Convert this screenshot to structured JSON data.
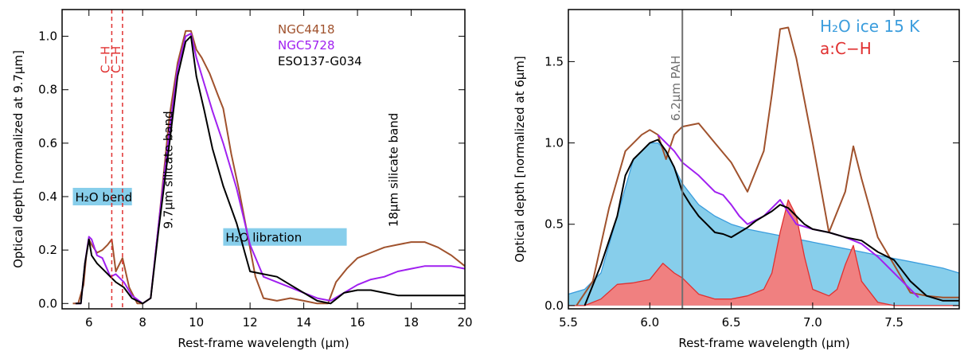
{
  "chart_data": [
    {
      "type": "line",
      "xlabel": "Rest-frame wavelength (μm)",
      "ylabel": "Optical depth [normalized at 9.7μm]",
      "xlim": [
        5,
        20
      ],
      "ylim": [
        -0.02,
        1.1
      ],
      "xticks": [
        "6",
        "8",
        "10",
        "12",
        "14",
        "16",
        "18",
        "20"
      ],
      "yticks": [
        "0.0",
        "0.2",
        "0.4",
        "0.6",
        "0.8",
        "1.0"
      ],
      "legend": {
        "placement": "top-right",
        "entries": [
          {
            "label": "NGC4418",
            "color": "#a0522d"
          },
          {
            "label": "NGC5728",
            "color": "#a020f0"
          },
          {
            "label": "ESO137-G034",
            "color": "#000000"
          }
        ]
      },
      "series": [
        {
          "name": "NGC4418",
          "color": "#a0522d",
          "x": [
            5.4,
            5.6,
            5.8,
            5.9,
            6.0,
            6.1,
            6.3,
            6.5,
            6.7,
            6.85,
            7.0,
            7.25,
            7.5,
            7.8,
            8.0,
            8.3,
            8.6,
            9.0,
            9.3,
            9.6,
            9.8,
            10.0,
            10.2,
            10.5,
            10.8,
            11.0,
            11.3,
            11.6,
            11.9,
            12.2,
            12.5,
            13.0,
            13.5,
            14.0,
            14.5,
            14.9,
            15.2,
            15.6,
            16.0,
            16.5,
            17.0,
            17.5,
            18.0,
            18.5,
            19.0,
            19.5,
            20.0
          ],
          "y": [
            0.0,
            0.0,
            0.07,
            0.18,
            0.24,
            0.22,
            0.19,
            0.2,
            0.22,
            0.24,
            0.12,
            0.17,
            0.06,
            0.0,
            0.0,
            0.02,
            0.3,
            0.7,
            0.9,
            1.02,
            1.02,
            0.95,
            0.92,
            0.86,
            0.78,
            0.73,
            0.56,
            0.42,
            0.26,
            0.1,
            0.02,
            0.01,
            0.02,
            0.01,
            0.0,
            0.0,
            0.08,
            0.13,
            0.17,
            0.19,
            0.21,
            0.22,
            0.23,
            0.23,
            0.21,
            0.18,
            0.14
          ]
        },
        {
          "name": "NGC5728",
          "color": "#a020f0",
          "x": [
            5.5,
            5.7,
            5.85,
            6.0,
            6.1,
            6.3,
            6.5,
            6.8,
            7.0,
            7.3,
            7.6,
            8.0,
            8.3,
            8.6,
            9.0,
            9.3,
            9.6,
            9.8,
            10.0,
            10.3,
            10.6,
            11.0,
            11.5,
            12.0,
            12.5,
            13.0,
            13.5,
            14.0,
            14.5,
            15.0,
            15.5,
            16.0,
            16.5,
            17.0,
            17.5,
            18.0,
            18.5,
            19.0,
            19.5,
            20.0
          ],
          "y": [
            0.0,
            0.0,
            0.15,
            0.25,
            0.24,
            0.18,
            0.17,
            0.1,
            0.11,
            0.08,
            0.03,
            0.0,
            0.02,
            0.3,
            0.65,
            0.88,
            1.0,
            1.01,
            0.92,
            0.82,
            0.72,
            0.6,
            0.43,
            0.22,
            0.1,
            0.08,
            0.06,
            0.04,
            0.02,
            0.01,
            0.04,
            0.07,
            0.09,
            0.1,
            0.12,
            0.13,
            0.14,
            0.14,
            0.14,
            0.13
          ]
        },
        {
          "name": "ESO137-G034",
          "color": "#000000",
          "x": [
            5.5,
            5.7,
            5.85,
            6.0,
            6.1,
            6.3,
            6.5,
            6.8,
            7.0,
            7.3,
            7.6,
            8.0,
            8.3,
            8.6,
            9.0,
            9.3,
            9.6,
            9.8,
            10.0,
            10.3,
            10.6,
            11.0,
            11.5,
            12.0,
            12.5,
            13.0,
            13.5,
            14.0,
            14.5,
            15.0,
            15.5,
            16.0,
            16.5,
            17.0,
            17.5,
            18.0,
            18.5,
            19.0,
            19.5,
            20.0
          ],
          "y": [
            0.0,
            0.0,
            0.15,
            0.24,
            0.18,
            0.15,
            0.13,
            0.1,
            0.08,
            0.06,
            0.02,
            0.0,
            0.02,
            0.28,
            0.6,
            0.85,
            0.98,
            1.0,
            0.85,
            0.72,
            0.58,
            0.44,
            0.3,
            0.12,
            0.11,
            0.1,
            0.07,
            0.04,
            0.01,
            0.0,
            0.04,
            0.05,
            0.05,
            0.04,
            0.03,
            0.03,
            0.03,
            0.03,
            0.03,
            0.03
          ]
        }
      ],
      "vlines": [
        {
          "x": 6.85,
          "label": "C−H",
          "color": "#e03030"
        },
        {
          "x": 7.25,
          "label": "C−H",
          "color": "#e03030"
        }
      ],
      "band_labels": [
        {
          "x1": 5.4,
          "x2": 7.6,
          "y": 0.4,
          "label": "H₂O bend",
          "color": "#87ceeb"
        },
        {
          "x1": 11.0,
          "x2": 15.6,
          "y": 0.249,
          "label": "H₂O libration",
          "color": "#87ceeb"
        }
      ],
      "annotations": [
        {
          "x": 9.1,
          "y": 0.5,
          "text": "9.7μm silicate band",
          "rotate": -90
        },
        {
          "x": 17.5,
          "y": 0.5,
          "text": "18μm silicate band",
          "rotate": -90
        }
      ]
    },
    {
      "type": "area",
      "xlabel": "Rest-frame wavelength (μm)",
      "ylabel": "Optical depth [normalized at 6μm]",
      "xlim": [
        5.5,
        7.9
      ],
      "ylim": [
        -0.02,
        1.82
      ],
      "xticks": [
        "5.5",
        "6.0",
        "6.5",
        "7.0",
        "7.5"
      ],
      "yticks": [
        "0.0",
        "0.5",
        "1.0",
        "1.5"
      ],
      "legend": {
        "placement": "top-right",
        "entries": [
          {
            "label": "H₂O ice 15 K",
            "color": "#3b9ddd"
          },
          {
            "label": "a:C−H",
            "color": "#e03030"
          }
        ]
      },
      "series": [
        {
          "name": "H₂O ice 15 K",
          "color": "#3b9ddd",
          "fill": "#87ceeb",
          "x": [
            5.5,
            5.6,
            5.7,
            5.8,
            5.9,
            6.0,
            6.05,
            6.1,
            6.2,
            6.3,
            6.4,
            6.5,
            6.6,
            6.7,
            6.8,
            6.9,
            7.0,
            7.1,
            7.2,
            7.3,
            7.4,
            7.5,
            7.6,
            7.7,
            7.8,
            7.9
          ],
          "y": [
            0.07,
            0.1,
            0.2,
            0.55,
            0.9,
            1.0,
            1.0,
            0.95,
            0.75,
            0.62,
            0.55,
            0.5,
            0.47,
            0.45,
            0.43,
            0.41,
            0.39,
            0.37,
            0.35,
            0.33,
            0.31,
            0.29,
            0.27,
            0.25,
            0.23,
            0.2
          ]
        },
        {
          "name": "a:C−H",
          "color": "#e03030",
          "fill": "#f08080",
          "x": [
            5.5,
            5.6,
            5.7,
            5.8,
            5.9,
            6.0,
            6.08,
            6.15,
            6.2,
            6.3,
            6.4,
            6.5,
            6.6,
            6.7,
            6.75,
            6.8,
            6.85,
            6.9,
            6.95,
            7.0,
            7.1,
            7.15,
            7.2,
            7.25,
            7.3,
            7.4,
            7.5,
            7.6,
            7.7,
            7.8,
            7.9
          ],
          "y": [
            0.0,
            0.0,
            0.04,
            0.13,
            0.14,
            0.16,
            0.26,
            0.2,
            0.17,
            0.07,
            0.04,
            0.04,
            0.06,
            0.1,
            0.2,
            0.45,
            0.65,
            0.55,
            0.3,
            0.1,
            0.06,
            0.1,
            0.25,
            0.37,
            0.15,
            0.02,
            0.0,
            0.0,
            0.0,
            0.0,
            0.0
          ]
        },
        {
          "name": "NGC4418",
          "color": "#a0522d",
          "x": [
            5.55,
            5.65,
            5.75,
            5.85,
            5.95,
            6.0,
            6.05,
            6.1,
            6.15,
            6.2,
            6.3,
            6.4,
            6.5,
            6.6,
            6.7,
            6.75,
            6.8,
            6.85,
            6.9,
            7.0,
            7.1,
            7.2,
            7.25,
            7.3,
            7.4,
            7.5,
            7.6,
            7.7,
            7.8,
            7.9
          ],
          "y": [
            0.0,
            0.15,
            0.6,
            0.95,
            1.05,
            1.08,
            1.05,
            0.9,
            1.05,
            1.1,
            1.12,
            1.0,
            0.88,
            0.7,
            0.95,
            1.3,
            1.7,
            1.71,
            1.52,
            1.0,
            0.45,
            0.7,
            0.98,
            0.78,
            0.42,
            0.25,
            0.08,
            0.06,
            0.05,
            0.05
          ]
        },
        {
          "name": "NGC5728",
          "color": "#a020f0",
          "x": [
            6.05,
            6.1,
            6.15,
            6.2,
            6.3,
            6.35,
            6.4,
            6.45,
            6.5,
            6.55,
            6.6,
            6.7,
            6.75,
            6.8,
            6.9,
            7.0,
            7.1,
            7.2,
            7.3,
            7.4,
            7.5,
            7.6,
            7.65
          ],
          "y": [
            1.05,
            1.0,
            0.95,
            0.88,
            0.8,
            0.75,
            0.7,
            0.68,
            0.62,
            0.55,
            0.5,
            0.55,
            0.6,
            0.65,
            0.5,
            0.47,
            0.45,
            0.42,
            0.38,
            0.3,
            0.2,
            0.1,
            0.05
          ]
        },
        {
          "name": "ESO137-G034",
          "color": "#000000",
          "x": [
            5.6,
            5.7,
            5.8,
            5.85,
            5.9,
            5.95,
            6.0,
            6.05,
            6.1,
            6.15,
            6.2,
            6.25,
            6.3,
            6.35,
            6.4,
            6.45,
            6.5,
            6.55,
            6.6,
            6.65,
            6.7,
            6.75,
            6.8,
            6.85,
            6.9,
            6.95,
            7.0,
            7.1,
            7.2,
            7.3,
            7.4,
            7.5,
            7.6,
            7.7,
            7.8,
            7.9
          ],
          "y": [
            0.0,
            0.25,
            0.55,
            0.8,
            0.9,
            0.95,
            1.0,
            1.02,
            0.95,
            0.85,
            0.7,
            0.62,
            0.55,
            0.5,
            0.45,
            0.44,
            0.42,
            0.45,
            0.48,
            0.52,
            0.55,
            0.58,
            0.62,
            0.6,
            0.55,
            0.5,
            0.47,
            0.45,
            0.42,
            0.4,
            0.33,
            0.28,
            0.15,
            0.06,
            0.03,
            0.03
          ]
        }
      ],
      "vlines": [
        {
          "x": 6.2,
          "label": "6.2μm PAH",
          "color": "#707070"
        }
      ]
    }
  ]
}
